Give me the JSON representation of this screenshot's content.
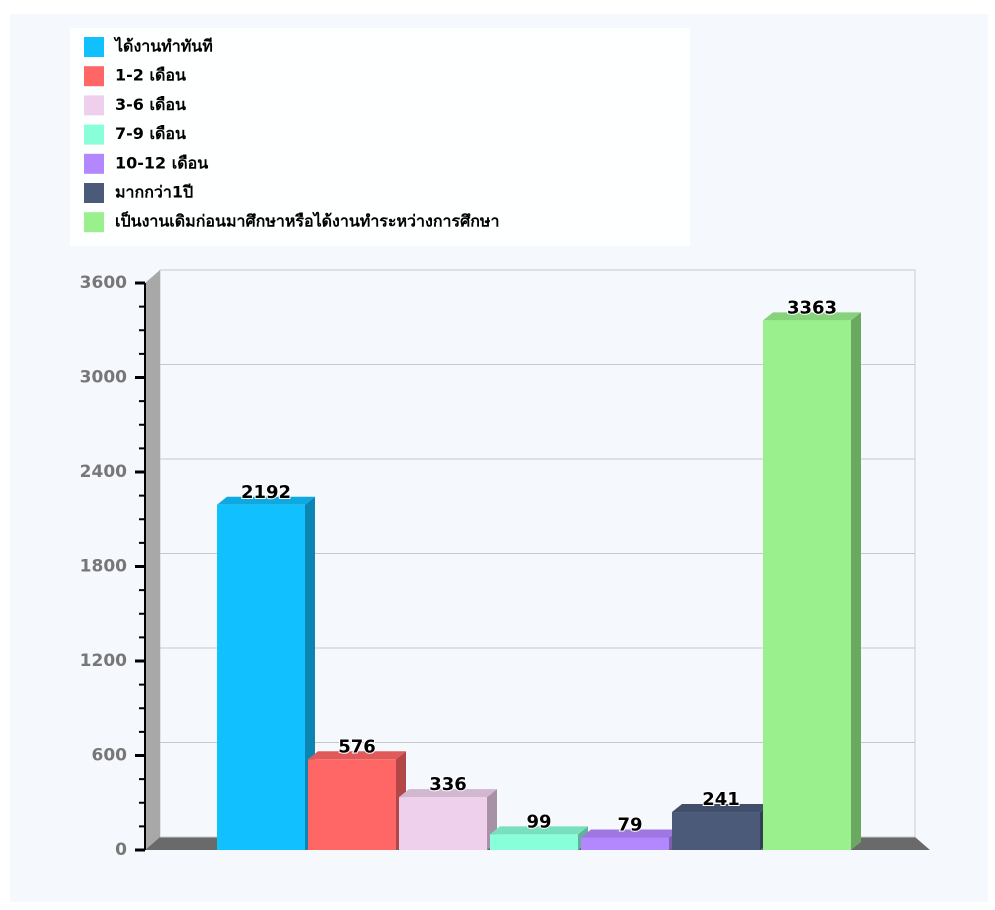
{
  "chart_data": {
    "type": "bar3d",
    "categories": [
      "ได้งานทำทันที",
      "1-2 เดือน",
      "3-6 เดือน",
      "7-9 เดือน",
      "10-12 เดือน",
      "มากกว่า1ปี",
      "เป็นงานเดิมก่อนมาศึกษาหรือได้งานทำระหว่างการศึกษา"
    ],
    "values": [
      2192,
      576,
      336,
      99,
      79,
      241,
      3363
    ],
    "colors": [
      "#10c0ff",
      "#ff6666",
      "#efd0ec",
      "#88ffd8",
      "#b388ff",
      "#4a5a78",
      "#99f08c"
    ],
    "ylim": [
      0,
      3600
    ],
    "yticks": [
      0,
      600,
      1200,
      1800,
      2400,
      3000,
      3600
    ],
    "grid": true,
    "legend": "top-left"
  }
}
